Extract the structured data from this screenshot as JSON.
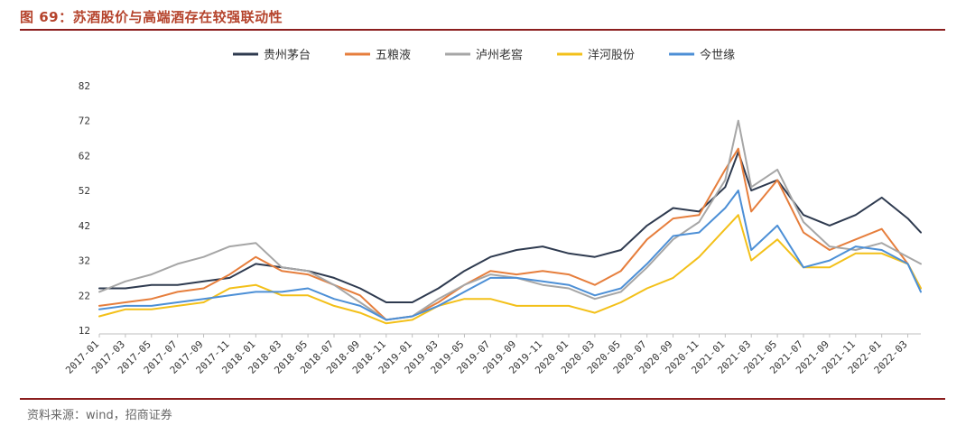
{
  "header": {
    "title": "图 69：苏酒股价与高端酒存在较强联动性"
  },
  "footer": {
    "source": "资料来源：wind，招商证券"
  },
  "chart_data": {
    "type": "line",
    "title": "图 69：苏酒股价与高端酒存在较强联动性",
    "xlabel": "",
    "ylabel": "",
    "ylim": [
      12,
      82
    ],
    "yticks": [
      12,
      22,
      32,
      42,
      52,
      62,
      72,
      82
    ],
    "grid": false,
    "legend_position": "top",
    "x": [
      "2017-01",
      "2017-03",
      "2017-05",
      "2017-07",
      "2017-09",
      "2017-11",
      "2018-01",
      "2018-03",
      "2018-05",
      "2018-07",
      "2018-09",
      "2018-11",
      "2019-01",
      "2019-03",
      "2019-05",
      "2019-07",
      "2019-09",
      "2019-11",
      "2020-01",
      "2020-03",
      "2020-05",
      "2020-07",
      "2020-09",
      "2020-11",
      "2021-01",
      "2021-02",
      "2021-03",
      "2021-05",
      "2021-07",
      "2021-09",
      "2021-11",
      "2022-01",
      "2022-03",
      "2022-04"
    ],
    "xticks": [
      "2017-01",
      "2017-03",
      "2017-05",
      "2017-07",
      "2017-09",
      "2017-11",
      "2018-01",
      "2018-03",
      "2018-05",
      "2018-07",
      "2018-09",
      "2018-11",
      "2019-01",
      "2019-03",
      "2019-05",
      "2019-07",
      "2019-09",
      "2019-11",
      "2020-01",
      "2020-03",
      "2020-05",
      "2020-07",
      "2020-09",
      "2020-11",
      "2021-01",
      "2021-03",
      "2021-05",
      "2021-07",
      "2021-09",
      "2021-11",
      "2022-01",
      "2022-03"
    ],
    "series": [
      {
        "name": "贵州茅台",
        "color": "#2e3a4f",
        "values": [
          24,
          24,
          25,
          25,
          26,
          27,
          31,
          30,
          29,
          27,
          24,
          20,
          20,
          24,
          29,
          33,
          35,
          36,
          34,
          33,
          35,
          42,
          47,
          46,
          53,
          63,
          52,
          55,
          45,
          42,
          45,
          50,
          44,
          40
        ]
      },
      {
        "name": "五粮液",
        "color": "#e67e3c",
        "values": [
          19,
          20,
          21,
          23,
          24,
          28,
          33,
          29,
          28,
          25,
          22,
          15,
          16,
          20,
          25,
          29,
          28,
          29,
          28,
          25,
          29,
          38,
          44,
          45,
          58,
          64,
          46,
          55,
          40,
          35,
          38,
          41,
          31,
          24
        ]
      },
      {
        "name": "泸州老窖",
        "color": "#a6a6a6",
        "values": [
          23,
          26,
          28,
          31,
          33,
          36,
          37,
          30,
          29,
          25,
          20,
          15,
          16,
          21,
          25,
          28,
          27,
          25,
          24,
          21,
          23,
          30,
          38,
          43,
          55,
          72,
          53,
          58,
          43,
          36,
          35,
          37,
          33,
          31
        ]
      },
      {
        "name": "洋河股份",
        "color": "#f3c019",
        "values": [
          16,
          18,
          18,
          19,
          20,
          24,
          25,
          22,
          22,
          19,
          17,
          14,
          15,
          19,
          21,
          21,
          19,
          19,
          19,
          17,
          20,
          24,
          27,
          33,
          41,
          45,
          32,
          38,
          30,
          30,
          34,
          34,
          31,
          24
        ]
      },
      {
        "name": "今世缘",
        "color": "#4c8fd6",
        "values": [
          18,
          19,
          19,
          20,
          21,
          22,
          23,
          23,
          24,
          21,
          19,
          15,
          16,
          19,
          23,
          27,
          27,
          26,
          25,
          22,
          24,
          31,
          39,
          40,
          47,
          52,
          35,
          42,
          30,
          32,
          36,
          35,
          31,
          23
        ]
      }
    ]
  }
}
